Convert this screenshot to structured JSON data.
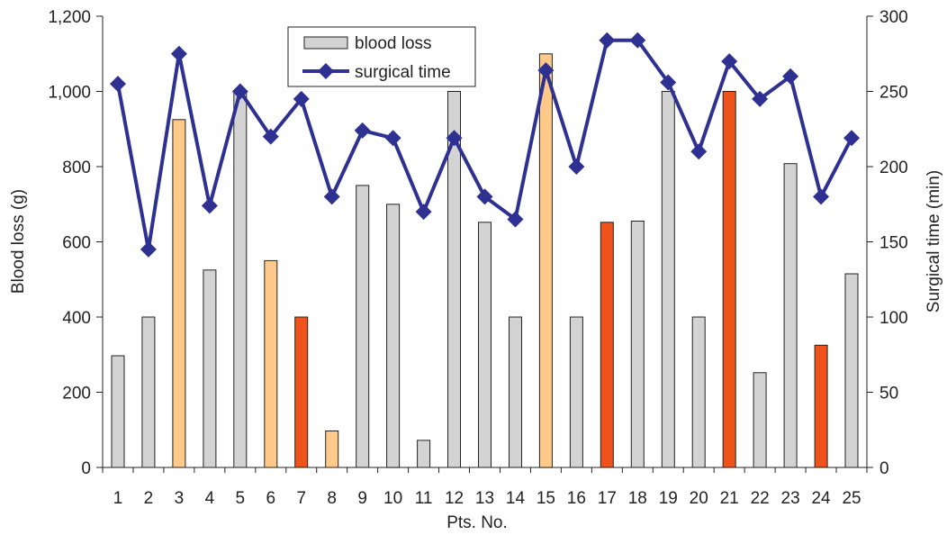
{
  "chart_data": {
    "type": "bar",
    "title": "",
    "xlabel": "Pts. No.",
    "ylabel": "Blood loss (g)",
    "y2label": "Surgical time (min)",
    "ylim": [
      0,
      1200
    ],
    "y2lim": [
      0,
      300
    ],
    "grid": false,
    "legend_position": "top-center",
    "categories": [
      "1",
      "2",
      "3",
      "4",
      "5",
      "6",
      "7",
      "8",
      "9",
      "10",
      "11",
      "12",
      "13",
      "14",
      "15",
      "16",
      "17",
      "18",
      "19",
      "20",
      "21",
      "22",
      "23",
      "24",
      "25"
    ],
    "y_ticks": [
      "0",
      "200",
      "400",
      "600",
      "800",
      "1,000",
      "1,200"
    ],
    "y2_ticks": [
      "0",
      "50",
      "100",
      "150",
      "200",
      "250",
      "300"
    ],
    "series": [
      {
        "name": "blood loss",
        "type": "bar",
        "axis": "left",
        "color": "#d3d3d3",
        "values": [
          297,
          400,
          925,
          525,
          1000,
          550,
          400,
          97,
          750,
          700,
          72,
          1000,
          652,
          400,
          1100,
          400,
          652,
          655,
          1000,
          400,
          1000,
          252,
          808,
          325,
          515
        ],
        "bar_colors": [
          "#d3d3d3",
          "#d3d3d3",
          "#ffc98a",
          "#d3d3d3",
          "#d3d3d3",
          "#ffc98a",
          "#f0521b",
          "#ffc98a",
          "#d3d3d3",
          "#d3d3d3",
          "#d3d3d3",
          "#d3d3d3",
          "#d3d3d3",
          "#d3d3d3",
          "#ffc98a",
          "#d3d3d3",
          "#f0521b",
          "#d3d3d3",
          "#d3d3d3",
          "#d3d3d3",
          "#f0521b",
          "#d3d3d3",
          "#d3d3d3",
          "#f0521b",
          "#d3d3d3"
        ]
      },
      {
        "name": "surgical time",
        "type": "line",
        "axis": "right",
        "color": "#2e3192",
        "marker": "diamond",
        "values": [
          255,
          145,
          275,
          174,
          250,
          220,
          245,
          180,
          224,
          219,
          170,
          219,
          180,
          165,
          264,
          200,
          284,
          284,
          256,
          210,
          270,
          245,
          260,
          180,
          219
        ]
      }
    ]
  }
}
